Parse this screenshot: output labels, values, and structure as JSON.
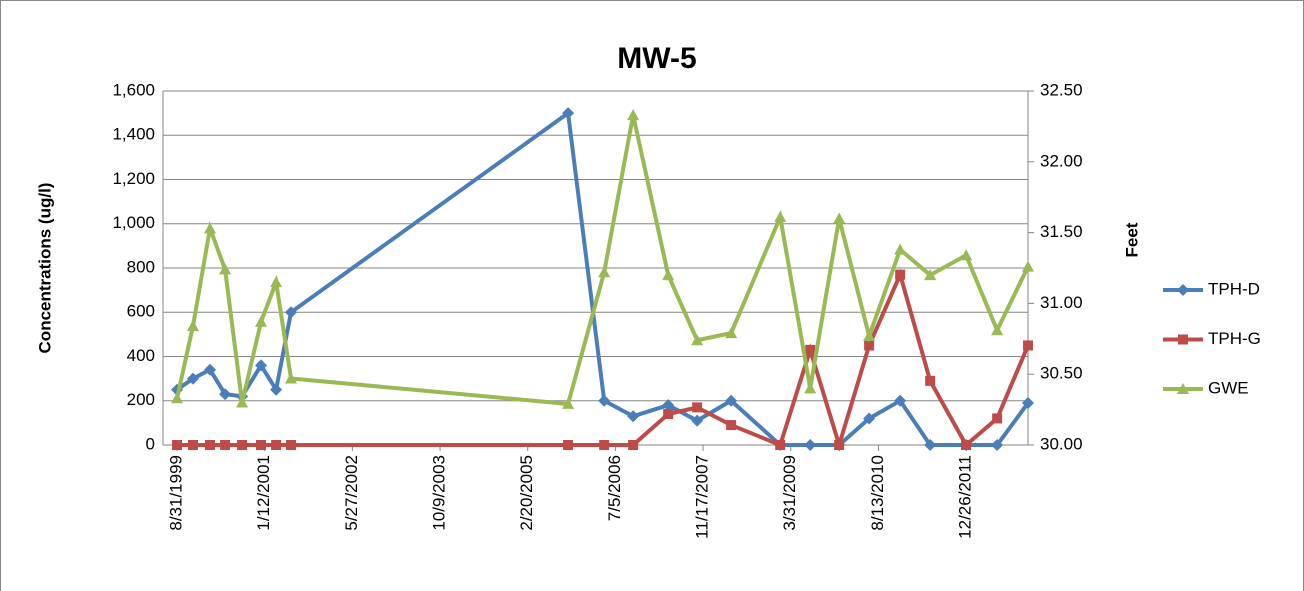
{
  "chart_data": {
    "type": "line",
    "title": "MW-5",
    "y_label": "Concentrations (ug/l)",
    "y2_label": "Feet",
    "x": [
      "8/31/1999",
      "11/30/1999",
      "3/6/2000",
      "5/31/2000",
      "9/5/2000",
      "12/22/2000",
      "3/18/2001",
      "6/11/2001",
      "10/8/2005",
      "5/2/2006",
      "10/14/2006",
      "5/2/2007",
      "10/14/2007",
      "4/25/2008",
      "1/30/2009",
      "7/20/2009",
      "1/1/2010",
      "6/21/2010",
      "12/15/2010",
      "6/4/2011",
      "12/26/2011",
      "6/20/2012",
      "12/13/2012"
    ],
    "xlim": [
      "6/12/1999",
      "12/13/2012"
    ],
    "xticks": [
      "8/31/1999",
      "1/12/2001",
      "5/27/2002",
      "10/9/2003",
      "2/20/2005",
      "7/5/2006",
      "11/17/2007",
      "3/31/2009",
      "8/13/2010",
      "12/26/2011"
    ],
    "ylim": [
      0,
      1600
    ],
    "yticks": [
      0,
      {
        "value": 200,
        "label": "200"
      },
      {
        "value": 400,
        "label": "400"
      },
      {
        "value": 600,
        "label": "600"
      },
      {
        "value": 800,
        "label": "800"
      },
      {
        "value": 1000,
        "label": "1,000"
      },
      {
        "value": 1200,
        "label": "1,200"
      },
      {
        "value": 1400,
        "label": "1,400"
      },
      {
        "value": 1600,
        "label": "1,600"
      }
    ],
    "y2lim": [
      30,
      32.5
    ],
    "y2ticks": [
      {
        "value": 30,
        "label": "30.00"
      },
      {
        "value": 30.5,
        "label": "30.50"
      },
      {
        "value": 31,
        "label": "31.00"
      },
      {
        "value": 31.5,
        "label": "31.50"
      },
      {
        "value": 32,
        "label": "32.00"
      },
      {
        "value": 32.5,
        "label": "32.50"
      }
    ],
    "grid": true,
    "legend": "right",
    "series": [
      {
        "name": "TPH-D",
        "color": "#4a7ebb",
        "marker": "diamond",
        "values": [
          250,
          300,
          340,
          230,
          220,
          360,
          250,
          600,
          1500,
          200,
          130,
          180,
          110,
          200,
          0,
          0,
          0,
          120,
          200,
          0,
          0,
          0,
          190
        ]
      },
      {
        "name": "TPH-G",
        "color": "#be4b48",
        "marker": "square",
        "values": [
          0,
          0,
          0,
          0,
          0,
          0,
          0,
          0,
          0,
          0,
          0,
          140,
          170,
          90,
          0,
          430,
          0,
          450,
          770,
          290,
          0,
          120,
          450
        ]
      },
      {
        "name": "GWE",
        "color": "#98b954",
        "marker": "triangle",
        "axis": "y2",
        "values": [
          30.33,
          30.84,
          31.53,
          31.24,
          30.3,
          30.87,
          31.15,
          30.47,
          30.29,
          31.22,
          32.33,
          31.2,
          30.74,
          30.79,
          31.61,
          30.4,
          31.6,
          30.77,
          31.38,
          31.2,
          31.34,
          30.81,
          31.26
        ]
      }
    ]
  }
}
